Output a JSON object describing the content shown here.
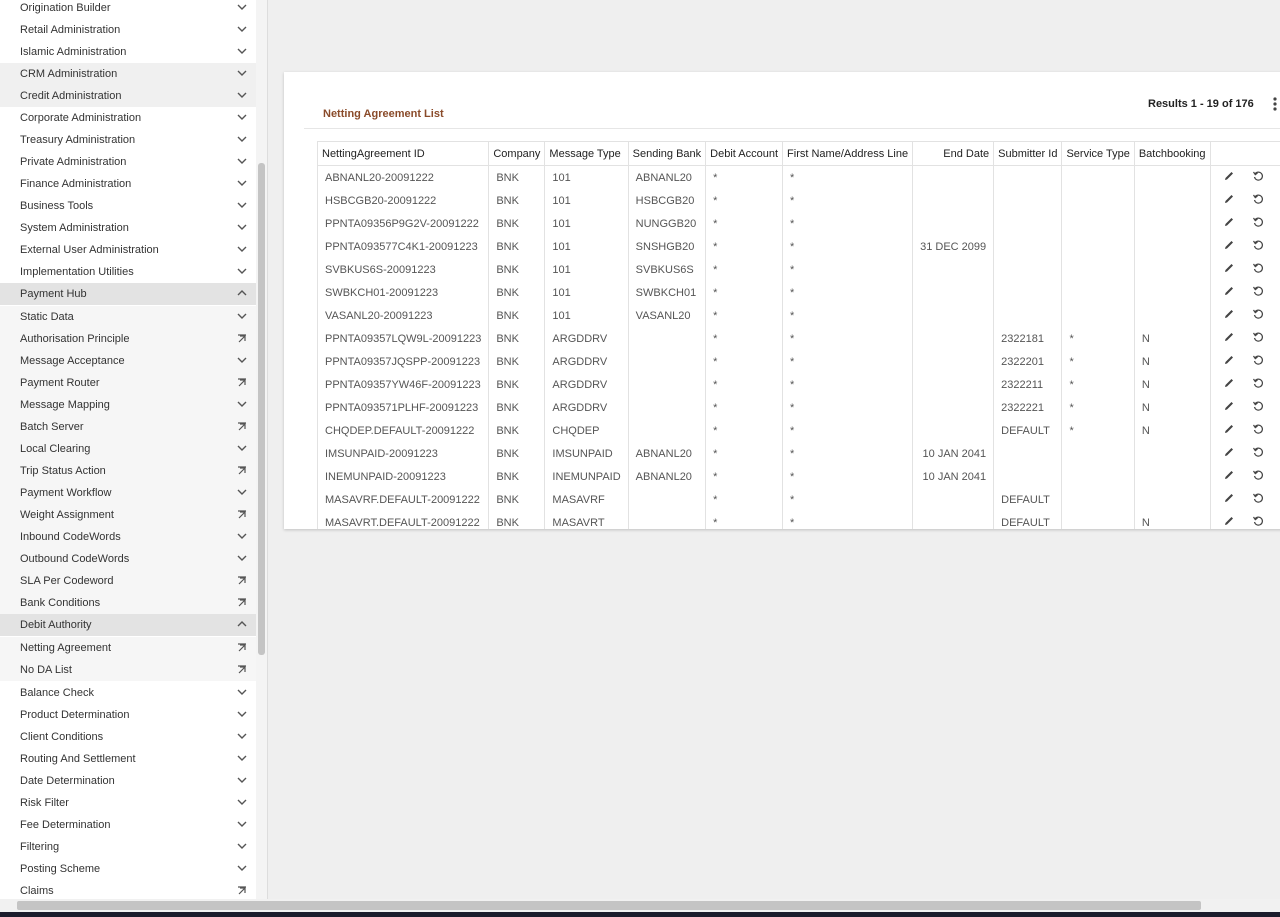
{
  "sidebar": {
    "items": [
      "Origination Builder",
      "Retail Administration",
      "Islamic Administration",
      "CRM Administration",
      "Credit Administration",
      "Corporate Administration",
      "Treasury Administration",
      "Private Administration",
      "Finance Administration",
      "Business Tools",
      "System Administration",
      "External User Administration",
      "Implementation Utilities",
      "Payment Hub",
      "Static Data",
      "Authorisation Principle",
      "Message Acceptance",
      "Payment Router",
      "Message Mapping",
      "Batch Server",
      "Local Clearing",
      "Trip Status Action",
      "Payment Workflow",
      "Weight Assignment",
      "Inbound CodeWords",
      "Outbound CodeWords",
      "SLA Per Codeword",
      "Bank Conditions",
      "Debit Authority",
      "Netting Agreement",
      "No DA List",
      "Balance Check",
      "Product Determination",
      "Client Conditions",
      "Routing And Settlement",
      "Date Determination",
      "Risk Filter",
      "Fee Determination",
      "Filtering",
      "Posting Scheme",
      "Claims"
    ]
  },
  "panel": {
    "title": "Netting Agreement List",
    "results": "Results 1 - 19 of 176"
  },
  "table": {
    "headers": [
      "NettingAgreement ID",
      "Company",
      "Message Type",
      "Sending Bank",
      "Debit Account",
      "First Name/Address Line",
      "End Date",
      "Submitter Id",
      "Service Type",
      "Batchbooking"
    ],
    "rows": [
      [
        "ABNANL20-20091222",
        "BNK",
        "101",
        "ABNANL20",
        "*",
        "*",
        null,
        null,
        null,
        null
      ],
      [
        "HSBCGB20-20091222",
        "BNK",
        "101",
        "HSBCGB20",
        "*",
        "*",
        null,
        null,
        null,
        null
      ],
      [
        "PPNTA09356P9G2V-20091222",
        "BNK",
        "101",
        "NUNGGB20",
        "*",
        "*",
        null,
        null,
        null,
        null
      ],
      [
        "PPNTA093577C4K1-20091223",
        "BNK",
        "101",
        "SNSHGB20",
        "*",
        "*",
        "31 DEC 2099",
        null,
        null,
        null
      ],
      [
        "SVBKUS6S-20091223",
        "BNK",
        "101",
        "SVBKUS6S",
        "*",
        "*",
        null,
        null,
        null,
        null
      ],
      [
        "SWBKCH01-20091223",
        "BNK",
        "101",
        "SWBKCH01",
        "*",
        "*",
        null,
        null,
        null,
        null
      ],
      [
        "VASANL20-20091223",
        "BNK",
        "101",
        "VASANL20",
        "*",
        "*",
        null,
        null,
        null,
        null
      ],
      [
        "PPNTA09357LQW9L-20091223",
        "BNK",
        "ARGDDRV",
        null,
        "*",
        "*",
        null,
        "2322181",
        "*",
        "N"
      ],
      [
        "PPNTA09357JQSPP-20091223",
        "BNK",
        "ARGDDRV",
        null,
        "*",
        "*",
        null,
        "2322201",
        "*",
        "N"
      ],
      [
        "PPNTA09357YW46F-20091223",
        "BNK",
        "ARGDDRV",
        null,
        "*",
        "*",
        null,
        "2322211",
        "*",
        "N"
      ],
      [
        "PPNTA093571PLHF-20091223",
        "BNK",
        "ARGDDRV",
        null,
        "*",
        "*",
        null,
        "2322221",
        "*",
        "N"
      ],
      [
        "CHQDEP.DEFAULT-20091222",
        "BNK",
        "CHQDEP",
        null,
        "*",
        "*",
        null,
        "DEFAULT",
        "*",
        "N"
      ],
      [
        "IMSUNPAID-20091223",
        "BNK",
        "IMSUNPAID",
        "ABNANL20",
        "*",
        "*",
        "10 JAN 2041",
        null,
        null,
        null
      ],
      [
        "INEMUNPAID-20091223",
        "BNK",
        "INEMUNPAID",
        "ABNANL20",
        "*",
        "*",
        "10 JAN 2041",
        null,
        null,
        null
      ],
      [
        "MASAVRF.DEFAULT-20091222",
        "BNK",
        "MASAVRF",
        null,
        "*",
        "*",
        null,
        "DEFAULT",
        null,
        null
      ],
      [
        "MASAVRT.DEFAULT-20091222",
        "BNK",
        "MASAVRT",
        null,
        "*",
        "*",
        null,
        "DEFAULT",
        null,
        "N"
      ]
    ]
  }
}
